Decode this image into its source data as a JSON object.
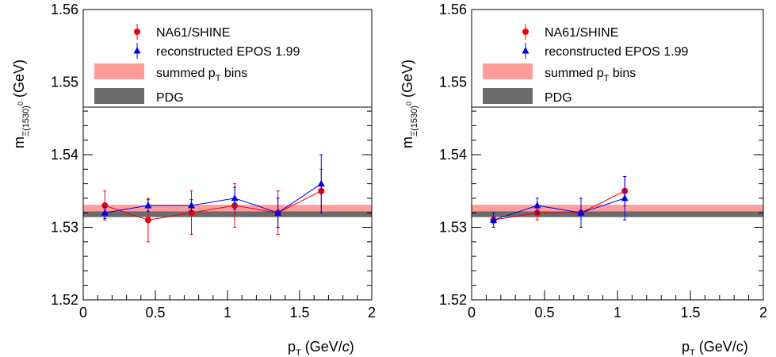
{
  "chart_data": [
    {
      "type": "scatter",
      "xlabel": "p_T (GeV/c)",
      "xlabel_italic_c": true,
      "ylabel": "m_Ξ(1530)^0 (GeV)",
      "xlim": [
        0,
        2
      ],
      "ylim": [
        1.52,
        1.56
      ],
      "x_ticks": [
        "0",
        "0.5",
        "1",
        "1.5",
        "2"
      ],
      "y_ticks": [
        "1.52",
        "1.53",
        "1.54",
        "1.55",
        "1.56"
      ],
      "legend": [
        "NA61/SHINE",
        "reconstructed EPOS 1.99",
        "summed p_T bins",
        "PDG"
      ],
      "bands": [
        {
          "name": "summed p_T bins",
          "low": 1.5322,
          "high": 1.5331,
          "color": "#ff9c9c"
        },
        {
          "name": "PDG",
          "low": 1.5314,
          "high": 1.5322,
          "color": "#6b6b6b"
        }
      ],
      "series": [
        {
          "name": "NA61/SHINE",
          "color": "#e8000b",
          "marker": "circle",
          "points": [
            {
              "x": 0.15,
              "y": 1.533,
              "err": 0.002
            },
            {
              "x": 0.45,
              "y": 1.531,
              "err": 0.003
            },
            {
              "x": 0.75,
              "y": 1.532,
              "err": 0.003
            },
            {
              "x": 1.05,
              "y": 1.533,
              "err": 0.003
            },
            {
              "x": 1.35,
              "y": 1.532,
              "err": 0.003
            },
            {
              "x": 1.65,
              "y": 1.535,
              "err": 0.003
            }
          ]
        },
        {
          "name": "reconstructed EPOS 1.99",
          "color": "#0000e6",
          "marker": "triangle",
          "points": [
            {
              "x": 0.15,
              "y": 1.532,
              "err": 0.0008
            },
            {
              "x": 0.45,
              "y": 1.533,
              "err": 0.0008
            },
            {
              "x": 0.75,
              "y": 1.533,
              "err": 0.0008
            },
            {
              "x": 1.05,
              "y": 1.534,
              "err": 0.0015
            },
            {
              "x": 1.35,
              "y": 1.532,
              "err": 0.002
            },
            {
              "x": 1.65,
              "y": 1.536,
              "err": 0.004
            }
          ]
        }
      ]
    },
    {
      "type": "scatter",
      "xlabel": "p_T (GeV/c)",
      "xlabel_italic_c": false,
      "ylabel": "m_Ξ(1530)^0 (GeV)",
      "xlim": [
        0,
        2
      ],
      "ylim": [
        1.52,
        1.56
      ],
      "x_ticks": [
        "0",
        "0.5",
        "1",
        "1.5",
        "2"
      ],
      "y_ticks": [
        "1.52",
        "1.53",
        "1.54",
        "1.55",
        "1.56"
      ],
      "legend": [
        "NA61/SHINE",
        "reconstructed EPOS 1.99",
        "summed p_T bins",
        "PDG"
      ],
      "bands": [
        {
          "name": "summed p_T bins",
          "low": 1.5322,
          "high": 1.5331,
          "color": "#ff9c9c"
        },
        {
          "name": "PDG",
          "low": 1.5314,
          "high": 1.5322,
          "color": "#6b6b6b"
        }
      ],
      "series": [
        {
          "name": "NA61/SHINE",
          "color": "#e8000b",
          "marker": "circle",
          "points": [
            {
              "x": 0.15,
              "y": 1.531,
              "err": 0.0005
            },
            {
              "x": 0.45,
              "y": 1.532,
              "err": 0.001
            },
            {
              "x": 0.75,
              "y": 1.532,
              "err": 0.002
            },
            {
              "x": 1.05,
              "y": 1.535,
              "err": 0.002
            }
          ]
        },
        {
          "name": "reconstructed EPOS 1.99",
          "color": "#0000e6",
          "marker": "triangle",
          "points": [
            {
              "x": 0.15,
              "y": 1.531,
              "err": 0.001
            },
            {
              "x": 0.45,
              "y": 1.533,
              "err": 0.001
            },
            {
              "x": 0.75,
              "y": 1.532,
              "err": 0.002
            },
            {
              "x": 1.05,
              "y": 1.534,
              "err": 0.003
            }
          ]
        }
      ]
    }
  ]
}
